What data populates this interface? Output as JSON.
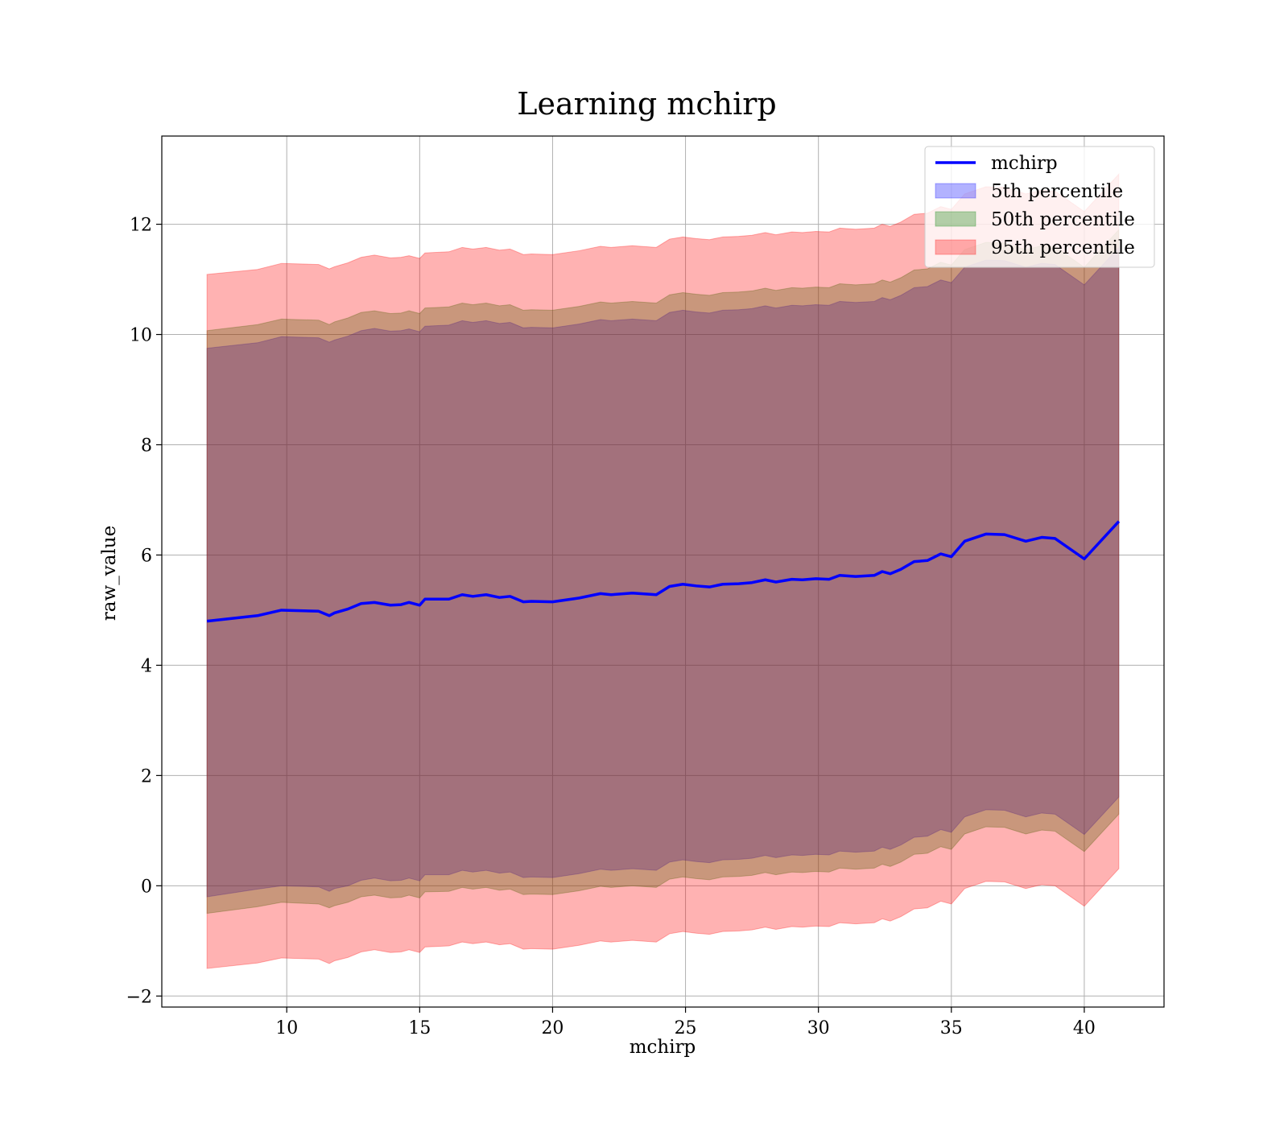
{
  "chart_data": {
    "type": "area",
    "title": "Learning mchirp",
    "xlabel": "mchirp",
    "ylabel": "raw_value",
    "xlim": [
      5.3,
      43.0
    ],
    "ylim": [
      -2.2,
      13.6
    ],
    "xticks": [
      10,
      15,
      20,
      25,
      30,
      35,
      40
    ],
    "yticks": [
      -2,
      0,
      2,
      4,
      6,
      8,
      10,
      12
    ],
    "xtick_labels": [
      "10",
      "15",
      "20",
      "25",
      "30",
      "35",
      "40"
    ],
    "ytick_labels": [
      "−2",
      "0",
      "2",
      "4",
      "6",
      "8",
      "10",
      "12"
    ],
    "grid": true,
    "legend_position": "top-right",
    "x": [
      7.0,
      8.9,
      9.8,
      11.2,
      11.6,
      11.8,
      12.3,
      12.8,
      13.3,
      13.9,
      14.3,
      14.6,
      15.0,
      15.2,
      16.1,
      16.6,
      17.0,
      17.5,
      18.0,
      18.4,
      18.9,
      19.2,
      20.0,
      21.0,
      21.8,
      22.2,
      23.0,
      23.9,
      24.4,
      24.9,
      25.4,
      25.9,
      26.4,
      27.0,
      27.5,
      28.0,
      28.4,
      29.0,
      29.4,
      29.9,
      30.4,
      30.8,
      31.4,
      32.1,
      32.4,
      32.7,
      33.1,
      33.6,
      34.1,
      34.6,
      35.0,
      35.5,
      36.3,
      37.0,
      37.8,
      38.4,
      38.9,
      40.0,
      41.3
    ],
    "series": [
      {
        "name": "mchirp",
        "color": "#0000ff",
        "values": [
          4.8,
          4.9,
          5.0,
          4.98,
          4.9,
          4.95,
          5.02,
          5.12,
          5.14,
          5.09,
          5.1,
          5.14,
          5.09,
          5.2,
          5.2,
          5.28,
          5.25,
          5.28,
          5.23,
          5.25,
          5.15,
          5.16,
          5.15,
          5.22,
          5.3,
          5.28,
          5.31,
          5.28,
          5.43,
          5.47,
          5.44,
          5.42,
          5.47,
          5.48,
          5.5,
          5.55,
          5.51,
          5.56,
          5.55,
          5.57,
          5.56,
          5.63,
          5.61,
          5.63,
          5.7,
          5.66,
          5.74,
          5.88,
          5.9,
          6.02,
          5.97,
          6.25,
          6.38,
          6.37,
          6.25,
          6.32,
          6.3,
          5.93,
          6.61
        ]
      },
      {
        "name": "5th percentile",
        "color": "#0000ff",
        "lower": [
          -0.2,
          -0.06,
          0.0,
          -0.02,
          -0.1,
          -0.05,
          0.0,
          0.1,
          0.14,
          0.09,
          0.1,
          0.14,
          0.09,
          0.2,
          0.2,
          0.28,
          0.25,
          0.28,
          0.23,
          0.25,
          0.15,
          0.16,
          0.15,
          0.22,
          0.3,
          0.28,
          0.31,
          0.28,
          0.43,
          0.47,
          0.44,
          0.42,
          0.47,
          0.48,
          0.5,
          0.55,
          0.51,
          0.56,
          0.55,
          0.57,
          0.56,
          0.63,
          0.61,
          0.63,
          0.7,
          0.66,
          0.74,
          0.88,
          0.9,
          1.02,
          0.97,
          1.25,
          1.38,
          1.37,
          1.25,
          1.32,
          1.3,
          0.93,
          1.61
        ],
        "upper": [
          9.75,
          9.85,
          9.96,
          9.94,
          9.86,
          9.9,
          9.97,
          10.07,
          10.11,
          10.06,
          10.07,
          10.1,
          10.05,
          10.15,
          10.17,
          10.25,
          10.22,
          10.25,
          10.2,
          10.22,
          10.12,
          10.13,
          10.12,
          10.19,
          10.27,
          10.25,
          10.28,
          10.25,
          10.4,
          10.44,
          10.41,
          10.39,
          10.44,
          10.45,
          10.47,
          10.52,
          10.48,
          10.53,
          10.52,
          10.54,
          10.53,
          10.6,
          10.58,
          10.6,
          10.67,
          10.63,
          10.71,
          10.85,
          10.87,
          10.99,
          10.94,
          11.22,
          11.35,
          11.34,
          11.22,
          11.29,
          11.27,
          10.9,
          11.58
        ]
      },
      {
        "name": "50th percentile",
        "color": "#008000",
        "lower": [
          -0.5,
          -0.38,
          -0.3,
          -0.33,
          -0.4,
          -0.36,
          -0.3,
          -0.2,
          -0.17,
          -0.22,
          -0.21,
          -0.17,
          -0.22,
          -0.11,
          -0.1,
          -0.03,
          -0.06,
          -0.03,
          -0.08,
          -0.06,
          -0.16,
          -0.15,
          -0.16,
          -0.09,
          -0.01,
          -0.03,
          0.0,
          -0.03,
          0.12,
          0.16,
          0.13,
          0.11,
          0.16,
          0.17,
          0.19,
          0.24,
          0.2,
          0.25,
          0.24,
          0.26,
          0.25,
          0.32,
          0.3,
          0.32,
          0.39,
          0.35,
          0.43,
          0.57,
          0.59,
          0.71,
          0.66,
          0.94,
          1.07,
          1.06,
          0.94,
          1.01,
          0.99,
          0.62,
          1.3
        ],
        "upper": [
          10.07,
          10.18,
          10.28,
          10.26,
          10.18,
          10.23,
          10.3,
          10.4,
          10.43,
          10.38,
          10.39,
          10.43,
          10.38,
          10.48,
          10.5,
          10.57,
          10.54,
          10.57,
          10.52,
          10.54,
          10.44,
          10.45,
          10.44,
          10.51,
          10.59,
          10.57,
          10.6,
          10.57,
          10.72,
          10.76,
          10.73,
          10.71,
          10.76,
          10.77,
          10.79,
          10.84,
          10.8,
          10.85,
          10.84,
          10.86,
          10.85,
          10.92,
          10.9,
          10.92,
          10.99,
          10.95,
          11.03,
          11.17,
          11.19,
          11.31,
          11.26,
          11.54,
          11.67,
          11.66,
          11.54,
          11.61,
          11.59,
          11.22,
          11.9
        ]
      },
      {
        "name": "95th percentile",
        "color": "#ff0000",
        "lower": [
          -1.5,
          -1.4,
          -1.31,
          -1.33,
          -1.41,
          -1.36,
          -1.3,
          -1.2,
          -1.16,
          -1.21,
          -1.2,
          -1.16,
          -1.21,
          -1.11,
          -1.09,
          -1.02,
          -1.05,
          -1.02,
          -1.07,
          -1.05,
          -1.15,
          -1.14,
          -1.15,
          -1.08,
          -1.0,
          -1.02,
          -0.99,
          -1.02,
          -0.87,
          -0.83,
          -0.86,
          -0.88,
          -0.83,
          -0.82,
          -0.8,
          -0.75,
          -0.79,
          -0.74,
          -0.75,
          -0.73,
          -0.74,
          -0.67,
          -0.69,
          -0.67,
          -0.6,
          -0.64,
          -0.56,
          -0.42,
          -0.4,
          -0.28,
          -0.33,
          -0.05,
          0.08,
          0.07,
          -0.05,
          0.02,
          0.0,
          -0.37,
          0.31
        ],
        "upper": [
          11.09,
          11.18,
          11.29,
          11.27,
          11.19,
          11.23,
          11.3,
          11.4,
          11.44,
          11.39,
          11.4,
          11.43,
          11.38,
          11.48,
          11.5,
          11.58,
          11.55,
          11.58,
          11.53,
          11.55,
          11.45,
          11.46,
          11.45,
          11.52,
          11.6,
          11.58,
          11.61,
          11.58,
          11.73,
          11.77,
          11.74,
          11.72,
          11.77,
          11.78,
          11.8,
          11.85,
          11.81,
          11.86,
          11.85,
          11.87,
          11.86,
          11.93,
          11.91,
          11.93,
          12.0,
          11.96,
          12.04,
          12.18,
          12.2,
          12.32,
          12.27,
          12.55,
          12.68,
          12.67,
          12.55,
          12.62,
          12.6,
          12.23,
          12.91
        ]
      }
    ]
  }
}
